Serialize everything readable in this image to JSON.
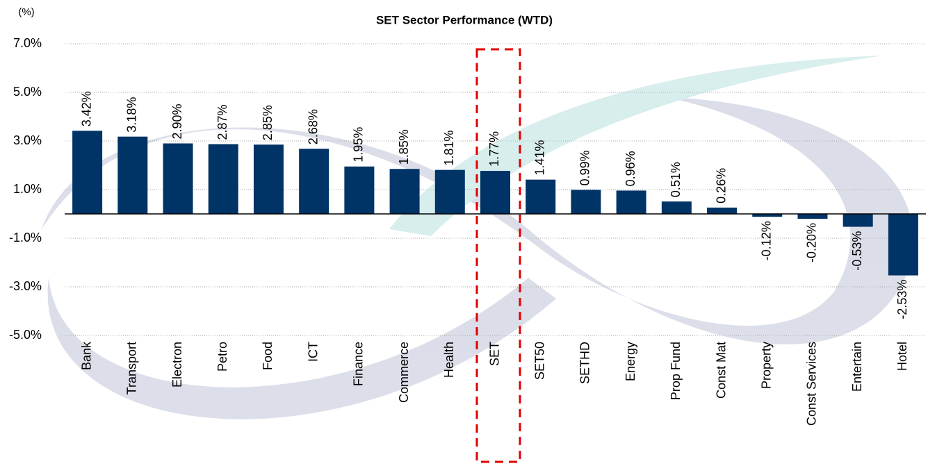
{
  "chart_data": {
    "type": "bar",
    "title": "SET Sector  Performance (WTD)",
    "y_unit": "(%)",
    "categories": [
      "Bank",
      "Transport",
      "Electron",
      "Petro",
      "Food",
      "ICT",
      "Finance",
      "Commerce",
      "Health",
      "SET",
      "SET50",
      "SETHD",
      "Energy",
      "Prop Fund",
      "Const Mat",
      "Property",
      "Const Services",
      "Entertain",
      "Hotel"
    ],
    "values": [
      3.42,
      3.18,
      2.9,
      2.87,
      2.85,
      2.68,
      1.95,
      1.85,
      1.81,
      1.77,
      1.41,
      0.99,
      0.96,
      0.51,
      0.26,
      -0.12,
      -0.2,
      -0.53,
      -2.53
    ],
    "value_labels": [
      "3.42%",
      "3.18%",
      "2.90%",
      "2.87%",
      "2.85%",
      "2.68%",
      "1.95%",
      "1.85%",
      "1.81%",
      "1.77%",
      "1.41%",
      "0.99%",
      "0.96%",
      "0.51%",
      "0.26%",
      "-0.12%",
      "-0.20%",
      "-0.53%",
      "-2.53%"
    ],
    "color": "#003366",
    "ylim": [
      -5,
      7
    ],
    "yticks": [
      {
        "value": 7,
        "label": "7.0%"
      },
      {
        "value": 5,
        "label": "5.0%"
      },
      {
        "value": 3,
        "label": "3.0%"
      },
      {
        "value": 1,
        "label": "1.0%"
      },
      {
        "value": -1,
        "label": "-1.0%"
      },
      {
        "value": -3,
        "label": "-3.0%"
      },
      {
        "value": -5,
        "label": "-5.0%"
      }
    ],
    "grid": true
  }
}
